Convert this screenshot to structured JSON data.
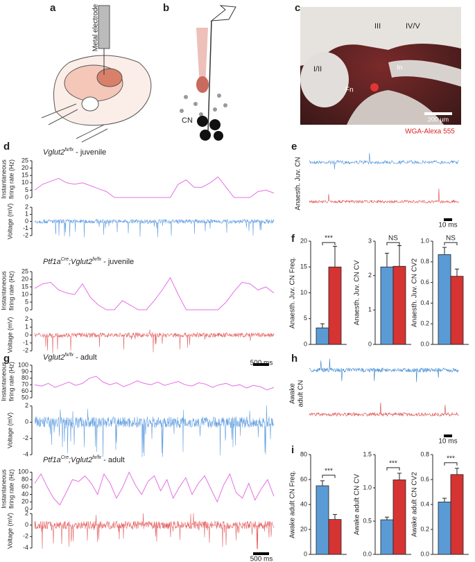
{
  "panel_labels": [
    "a",
    "b",
    "c",
    "d",
    "e",
    "f",
    "g",
    "h",
    "i"
  ],
  "a": {
    "electrode_label": "Metal electrode"
  },
  "b": {
    "label": "CN"
  },
  "c": {
    "regions": [
      "III",
      "IV/V",
      "I/II",
      "In",
      "Fn"
    ],
    "scale_bar": "200 µm",
    "stain": "WGA-Alexa 555"
  },
  "e": {
    "ylabel": "Anaesth. Juv. CN",
    "scale_bar": "10 ms"
  },
  "h": {
    "ylabel": [
      "Awake",
      "adult CN"
    ],
    "scale_bar": "10 ms"
  },
  "chart_data": [
    {
      "type": "line",
      "title": [
        "Vglut2",
        "fx/fx",
        " - juvenile"
      ],
      "ylabel": [
        "Instantaneous",
        "firing rate (Hz)"
      ],
      "ylim": [
        0,
        25
      ],
      "yticks": [
        0,
        5,
        10,
        15,
        20,
        25
      ],
      "color": "#e46fe4",
      "values": [
        5,
        9,
        11,
        13,
        10,
        9,
        10,
        8,
        6,
        4,
        0,
        0,
        0,
        0,
        0,
        0,
        0,
        0,
        9,
        12,
        7,
        7,
        10,
        14,
        7,
        0,
        0,
        0,
        4,
        5,
        3
      ]
    },
    {
      "type": "trace",
      "ylabel": [
        "Voltage (mV)"
      ],
      "ylim": [
        -2.5,
        2.5
      ],
      "yticks": [
        -2,
        -1,
        0,
        1,
        2
      ],
      "color": "#4a8fdc"
    },
    {
      "type": "line",
      "title": [
        "Ptf1a",
        "Cre",
        ";Vglut2",
        "fx/fx",
        " - juvenile"
      ],
      "ylabel": [
        "Instantaneous",
        "firing rate (Hz)"
      ],
      "ylim": [
        0,
        25
      ],
      "yticks": [
        0,
        5,
        10,
        15,
        20,
        25
      ],
      "color": "#e46fe4",
      "values": [
        14,
        17,
        18,
        13,
        11,
        10,
        17,
        8,
        3,
        0,
        0,
        6,
        3,
        0,
        0,
        6,
        13,
        21,
        10,
        0,
        0,
        0,
        0,
        0,
        5,
        12,
        18,
        17,
        13,
        15,
        11
      ]
    },
    {
      "type": "trace",
      "ylabel": [
        "Voltage (mV)"
      ],
      "ylim": [
        -2.5,
        2.5
      ],
      "yticks": [
        -2,
        -1,
        0,
        1,
        2
      ],
      "color": "#e04848",
      "scale_bar": "500 ms"
    },
    {
      "type": "line",
      "title": [
        "Vglut2",
        "fx/fx",
        " - adult"
      ],
      "ylabel": [
        "Instantaneous",
        "firing rate (Hz)"
      ],
      "ylim": [
        50,
        100
      ],
      "yticks": [
        50,
        60,
        70,
        80,
        90,
        100
      ],
      "color": "#e46fe4",
      "values": [
        70,
        68,
        72,
        66,
        70,
        74,
        69,
        72,
        80,
        83,
        74,
        70,
        73,
        67,
        71,
        76,
        72,
        70,
        74,
        69,
        72,
        75,
        70,
        68,
        73,
        71,
        66,
        70,
        72,
        68,
        70,
        65,
        69,
        67,
        62,
        66
      ]
    },
    {
      "type": "trace",
      "ylabel": [
        "Voltage (mV)"
      ],
      "ylim": [
        -4.5,
        2.5
      ],
      "yticks": [
        -4,
        -2,
        0,
        2
      ],
      "color": "#4a8fdc"
    },
    {
      "type": "line",
      "title": [
        "Ptf1a",
        "Cre",
        ";Vglut2",
        "fx/fx",
        " - adult"
      ],
      "ylabel": [
        "Instantaneous",
        "firing rate (Hz)"
      ],
      "ylim": [
        0,
        110
      ],
      "yticks": [
        0,
        20,
        40,
        60,
        80,
        100
      ],
      "color": "#e46fe4",
      "values": [
        70,
        95,
        60,
        30,
        12,
        45,
        80,
        75,
        90,
        70,
        40,
        95,
        70,
        30,
        60,
        100,
        65,
        40,
        75,
        90,
        50,
        80,
        30,
        60,
        85,
        40,
        70,
        90,
        55,
        20,
        65,
        95,
        45,
        30,
        70,
        25,
        55,
        80,
        35
      ]
    },
    {
      "type": "trace",
      "ylabel": [
        "Voltage (mV)"
      ],
      "ylim": [
        -4.5,
        2.5
      ],
      "yticks": [
        -4,
        -2,
        0,
        2
      ],
      "color": "#e04848",
      "scale_bar": "500 ms"
    },
    {
      "type": "bar",
      "ylabel": "Anaesth. Juv. CN Freq.",
      "ylim": [
        0,
        20
      ],
      "yticks": [
        0,
        5,
        10,
        15,
        20
      ],
      "values": [
        3.2,
        15
      ],
      "errors": [
        0.8,
        4
      ],
      "colors": [
        "#5b9bd5",
        "#d63333"
      ],
      "significance": "***"
    },
    {
      "type": "bar",
      "ylabel": "Anaesth. Juv. CN CV",
      "ylim": [
        0,
        3
      ],
      "yticks": [
        0,
        1,
        2,
        3
      ],
      "values": [
        2.25,
        2.27
      ],
      "errors": [
        0.4,
        0.6
      ],
      "colors": [
        "#5b9bd5",
        "#d63333"
      ],
      "significance": "NS"
    },
    {
      "type": "bar",
      "ylabel": "Anaesth. Juv. CN CV2",
      "ylim": [
        0,
        1
      ],
      "yticks": [
        {
          "value": 0,
          "label": "0.0"
        },
        0.2,
        0.4,
        0.6,
        0.8,
        {
          "value": 1,
          "label": "1.0"
        }
      ],
      "values": [
        0.87,
        0.66
      ],
      "errors": [
        0.07,
        0.07
      ],
      "colors": [
        "#5b9bd5",
        "#d63333"
      ],
      "significance": "NS"
    },
    {
      "type": "bar",
      "ylabel": "Awake adult CN Freq.",
      "ylim": [
        0,
        80
      ],
      "yticks": [
        0,
        20,
        40,
        60,
        80
      ],
      "values": [
        55,
        28
      ],
      "errors": [
        4,
        4
      ],
      "colors": [
        "#5b9bd5",
        "#d63333"
      ],
      "significance": "***"
    },
    {
      "type": "bar",
      "ylabel": "Awake adult CN CV",
      "ylim": [
        0,
        1.5
      ],
      "yticks": [
        {
          "value": 0,
          "label": "0.0"
        },
        0.5,
        {
          "value": 1,
          "label": "1.0"
        },
        1.5
      ],
      "values": [
        0.52,
        1.12
      ],
      "errors": [
        0.04,
        0.1
      ],
      "colors": [
        "#5b9bd5",
        "#d63333"
      ],
      "significance": "***"
    },
    {
      "type": "bar",
      "ylabel": "Awake adult CN CV2",
      "ylim": [
        0,
        0.8
      ],
      "yticks": [
        {
          "value": 0,
          "label": "0.0"
        },
        0.2,
        0.4,
        0.6,
        0.8
      ],
      "values": [
        0.42,
        0.64
      ],
      "errors": [
        0.03,
        0.05
      ],
      "colors": [
        "#5b9bd5",
        "#d63333"
      ],
      "significance": "***"
    }
  ]
}
